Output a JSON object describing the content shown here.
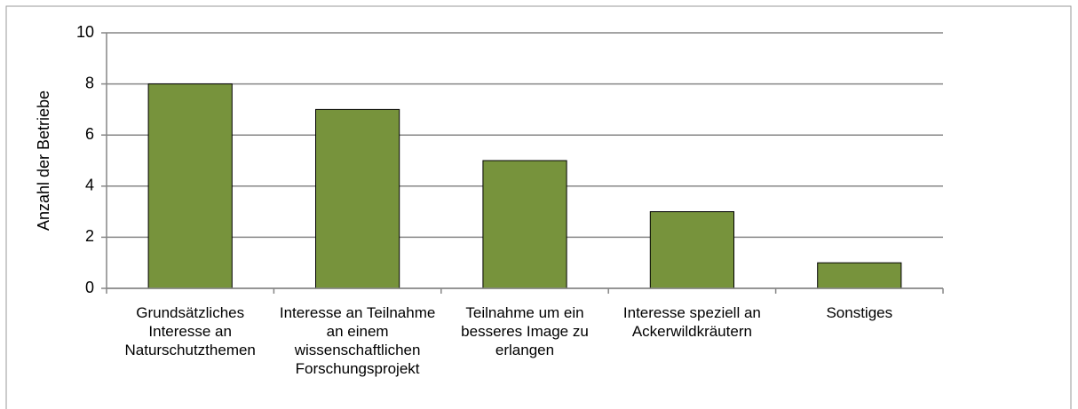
{
  "chart_data": {
    "type": "bar",
    "y_label": "Anzahl der Betriebe",
    "categories": [
      "Grundsätzliches Interesse an Naturschutzthemen",
      "Interesse an Teilnahme an einem wissenschaftlichen Forschungsprojekt",
      "Teilnahme um ein besseres Image zu erlangen",
      "Interesse speziell an Ackerwildkräutern",
      "Sonstiges"
    ],
    "values": [
      8,
      7,
      5,
      3,
      1
    ],
    "color": "#77933c",
    "ylim": [
      0,
      10
    ],
    "yticks": [
      0,
      2,
      4,
      6,
      8,
      10
    ],
    "grid": true
  }
}
